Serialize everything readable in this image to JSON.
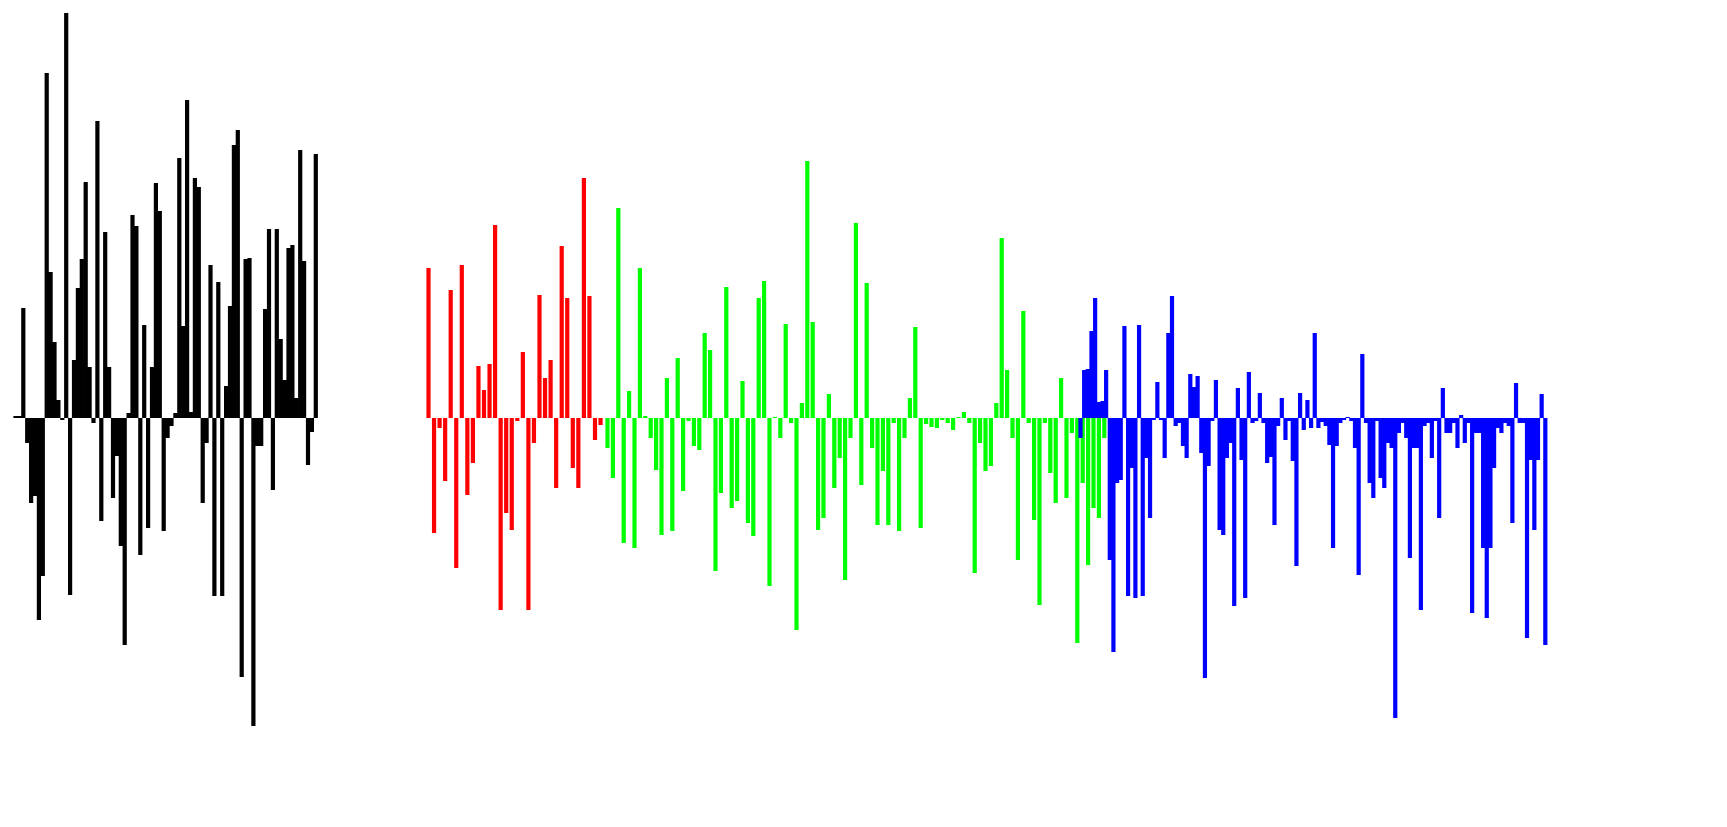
{
  "chart_data": {
    "type": "bar",
    "title": "",
    "xlabel": "",
    "ylabel": "",
    "grid": false,
    "legend": "none",
    "ylim": [
      -330,
      410
    ],
    "series": [
      {
        "color": "#000000",
        "values": [
          2,
          2,
          110,
          -25,
          -85,
          -78,
          -202,
          -158,
          345,
          146,
          76,
          18,
          -2,
          405,
          -177,
          58,
          130,
          159,
          236,
          51,
          -5,
          297,
          -103,
          186,
          51,
          -80,
          -38,
          -128,
          -227,
          5,
          203,
          192,
          -137,
          93,
          -110,
          51,
          235,
          207,
          -113,
          -20,
          -8,
          5,
          260,
          92,
          318,
          6,
          240,
          231,
          -85,
          -25,
          153,
          -178,
          136,
          -178,
          32,
          112,
          273,
          288,
          -259,
          159,
          160,
          -308,
          -28,
          -28,
          109,
          189,
          -72,
          189,
          79,
          38,
          170,
          173,
          20,
          268,
          157,
          -47,
          -14,
          264
        ],
        "start_x": 15.5,
        "step_x": 3.9
      },
      {
        "color": "#ff0000",
        "values": [
          150,
          -115,
          -10,
          -63,
          128,
          -150,
          153,
          -77,
          -45,
          52,
          28,
          54,
          193,
          -192,
          -95,
          -112,
          -3,
          66,
          -192,
          -25,
          123,
          40,
          58,
          -70,
          172,
          120,
          -50,
          -70,
          240,
          122,
          -22,
          -7
        ],
        "start_x": 428.5,
        "step_x": 5.55
      },
      {
        "color": "#00ff00",
        "values": [
          -30,
          -60,
          210,
          -125,
          27,
          -130,
          150,
          2,
          -20,
          -52,
          -117,
          40,
          -113,
          60,
          -73,
          -3,
          -28,
          -32,
          85,
          68,
          -153,
          -75,
          131,
          -90,
          -83,
          37,
          -105,
          -118,
          120,
          137,
          -168,
          1,
          -20,
          94,
          -5,
          -212,
          15,
          257,
          96,
          -112,
          -100,
          24,
          -70,
          -40,
          -162,
          -20,
          195,
          -67,
          135,
          -30,
          -107,
          -53,
          -107,
          -5,
          -113,
          -20,
          20,
          91,
          -110,
          -6,
          -9,
          -10,
          -2,
          -5,
          -12,
          0,
          6,
          -5,
          -155,
          -25,
          -53,
          -48,
          15,
          180,
          48,
          -20,
          -142,
          107,
          -5,
          -102,
          -187,
          -5,
          -55,
          -85,
          40,
          -80,
          -15,
          -225,
          -65,
          -147,
          -90,
          -100,
          -20
        ],
        "start_x": 607.5,
        "step_x": 5.4
      },
      {
        "color": "#0000ff",
        "values": [
          -20,
          48,
          49,
          87,
          120,
          16,
          17,
          48,
          -142,
          -234,
          -65,
          -62,
          92,
          -178,
          -50,
          -180,
          93,
          -178,
          -40,
          -100,
          -2,
          36,
          -2,
          -40,
          85,
          122,
          -8,
          -5,
          -28,
          -40,
          44,
          31,
          42,
          -35,
          -260,
          -48,
          -3,
          38,
          -112,
          -117,
          -40,
          -25,
          -188,
          30,
          -42,
          -180,
          46,
          -5,
          -3,
          25,
          -5,
          -45,
          -39,
          -107,
          -8,
          20,
          -22,
          -3,
          -43,
          -148,
          25,
          -12,
          18,
          -10,
          85,
          -10,
          -4,
          -8,
          -27,
          -130,
          -28,
          -5,
          -2,
          0,
          -3,
          -30,
          -157,
          64,
          -5,
          -65,
          -80,
          -3,
          -60,
          -70,
          -25,
          -30,
          -300,
          -15,
          -5,
          -20,
          -140,
          -30,
          -30,
          -192,
          -8,
          -5,
          -40,
          -3,
          -100,
          30,
          -15,
          -15,
          -5,
          -30,
          3,
          -25,
          -5,
          -195,
          -15,
          -15,
          -130,
          -200,
          -130,
          -50,
          -10,
          -15,
          -5,
          -8,
          -105,
          35,
          -5,
          -5,
          -220,
          -42,
          -112,
          -42,
          24,
          -227
        ],
        "start_x": 1080.5,
        "step_x": 3.66
      }
    ]
  }
}
